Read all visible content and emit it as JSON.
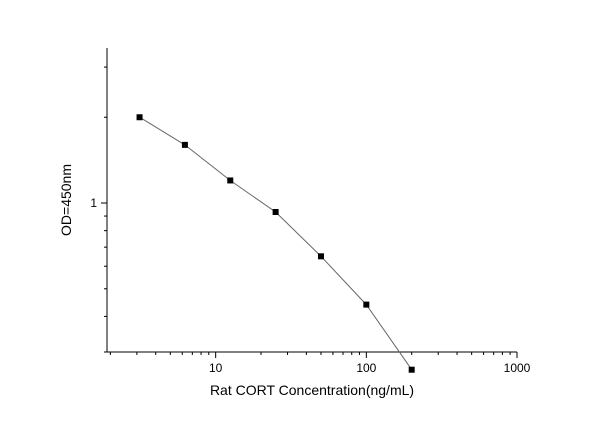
{
  "chart_data": {
    "type": "line",
    "title": "",
    "xlabel": "Rat CORT Concentration(ng/mL)",
    "ylabel": "OD=450nm",
    "xscale": "log",
    "yscale": "log",
    "xlim": [
      1.9,
      1000
    ],
    "ylim": [
      0.3,
      3.5
    ],
    "x_ticks": [
      10,
      100,
      1000
    ],
    "x_tick_labels": [
      "10",
      "100",
      "1000"
    ],
    "y_ticks": [
      1
    ],
    "y_tick_labels": [
      "1"
    ],
    "grid": false,
    "marker": "square",
    "series": [
      {
        "x": [
          3.125,
          6.25,
          12.5,
          25,
          50,
          100,
          200
        ],
        "y": [
          2.0,
          1.6,
          1.2,
          0.93,
          0.65,
          0.44,
          0.26
        ]
      }
    ]
  }
}
